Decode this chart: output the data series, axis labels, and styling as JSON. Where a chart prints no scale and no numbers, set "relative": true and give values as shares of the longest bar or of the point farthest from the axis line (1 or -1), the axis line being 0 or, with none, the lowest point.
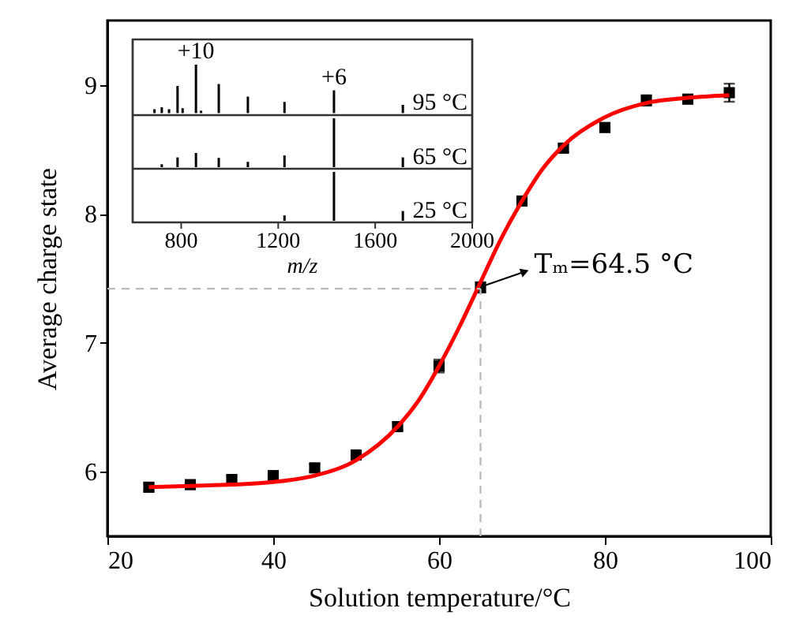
{
  "chart_data": [
    {
      "type": "scatter",
      "xlabel": "Solution temperature/°C",
      "ylabel": "Average charge state",
      "xlim": [
        20,
        100
      ],
      "ylim": [
        5.5,
        9.5
      ],
      "xticks": [
        20,
        40,
        60,
        80,
        100
      ],
      "yticks": [
        6,
        7,
        8,
        9
      ],
      "series": [
        {
          "type": "scatter",
          "marker": "square",
          "color": "#000000",
          "x": [
            25,
            30,
            35,
            40,
            45,
            50,
            55,
            60,
            65,
            70,
            75,
            80,
            85,
            90,
            95
          ],
          "values": [
            5.88,
            5.9,
            5.94,
            5.97,
            6.03,
            6.13,
            6.35,
            6.82,
            7.43,
            8.1,
            8.51,
            8.67,
            8.88,
            8.89,
            8.94
          ],
          "errors": [
            0.03,
            0.03,
            0.03,
            0.03,
            0.03,
            0.03,
            0.03,
            0.05,
            0.04,
            0.03,
            0.03,
            0.03,
            0.04,
            0.03,
            0.07
          ]
        },
        {
          "type": "line",
          "marker": "none",
          "color": "#ff0000",
          "line_style": "solid",
          "x": [
            25,
            30,
            35,
            40,
            45,
            50,
            55,
            57.5,
            60,
            62.5,
            65,
            67.5,
            70,
            72.5,
            75,
            80,
            85,
            90,
            95
          ],
          "values": [
            5.88,
            5.89,
            5.9,
            5.92,
            5.97,
            6.09,
            6.35,
            6.55,
            6.82,
            7.13,
            7.47,
            7.81,
            8.1,
            8.35,
            8.53,
            8.75,
            8.86,
            8.9,
            8.92
          ]
        }
      ],
      "ref_lines": [
        {
          "axis": "y",
          "value": 7.42,
          "color": "#bbbbbb",
          "line_style": "dashed"
        },
        {
          "axis": "x",
          "value": 65,
          "color": "#bbbbbb",
          "line_style": "dashed"
        }
      ],
      "annotations": [
        {
          "text": "Tₘ=64.5 °C",
          "x": 65,
          "y": 7.43
        }
      ]
    },
    {
      "type": "bar",
      "relative": true,
      "xlim": [
        600,
        2000
      ],
      "tick_labels": false,
      "series": [
        {
          "name": "95 °C",
          "color": "#000000",
          "x": [
            690,
            720,
            750,
            785,
            806,
            861,
            882,
            955,
            1075,
            1226,
            1430,
            1714
          ],
          "values": [
            0.08,
            0.12,
            0.08,
            0.56,
            0.1,
            1.0,
            0.05,
            0.6,
            0.34,
            0.23,
            0.47,
            0.17
          ]
        }
      ],
      "annotations": [
        {
          "text": "+10",
          "x": 861,
          "y": 1.0
        },
        {
          "text": "+6",
          "x": 1430,
          "y": 0.47
        }
      ]
    },
    {
      "type": "bar",
      "relative": true,
      "xlim": [
        600,
        2000
      ],
      "tick_labels": false,
      "series": [
        {
          "name": "65 °C",
          "color": "#000000",
          "x": [
            720,
            785,
            861,
            955,
            1075,
            1226,
            1430,
            1714
          ],
          "values": [
            0.06,
            0.2,
            0.29,
            0.19,
            0.11,
            0.24,
            1.0,
            0.2
          ]
        }
      ]
    },
    {
      "type": "bar",
      "relative": true,
      "xlim": [
        600,
        2000
      ],
      "xticks": [
        800,
        1200,
        1600,
        2000
      ],
      "xlabel": "m/z",
      "tick_labels": "x",
      "series": [
        {
          "name": "25 °C",
          "color": "#000000",
          "x": [
            1226,
            1430,
            1714
          ],
          "values": [
            0.11,
            1.0,
            0.2
          ]
        }
      ]
    }
  ]
}
